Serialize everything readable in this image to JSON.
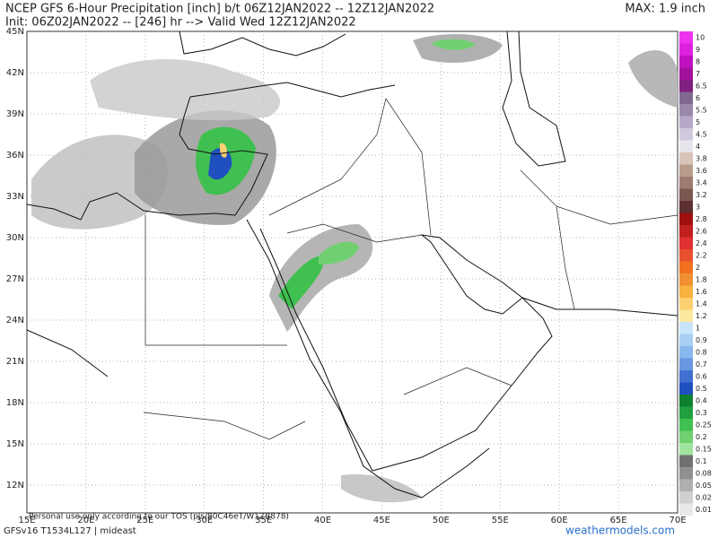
{
  "header": {
    "title": "NCEP GFS 6-Hour Precipitation [inch] b/t 06Z12JAN2022 -- 12Z12JAN2022",
    "subtitle": "Init: 06Z02JAN2022 -- [246] hr --> Valid Wed 12Z12JAN2022",
    "max": "MAX: 1.9 inch"
  },
  "map": {
    "lat_labels": [
      "45N",
      "42N",
      "39N",
      "36N",
      "33N",
      "30N",
      "27N",
      "24N",
      "21N",
      "18N",
      "15N",
      "12N"
    ],
    "lon_labels": [
      "15E",
      "20E",
      "25E",
      "30E",
      "35E",
      "40E",
      "45E",
      "50E",
      "55E",
      "60E",
      "65E",
      "70E"
    ]
  },
  "colorbar": [
    {
      "label": "10",
      "color": "#ee33ee"
    },
    {
      "label": "9",
      "color": "#dd22dd"
    },
    {
      "label": "8",
      "color": "#c010c0"
    },
    {
      "label": "7",
      "color": "#a0109a"
    },
    {
      "label": "6.5",
      "color": "#802080"
    },
    {
      "label": "6",
      "color": "#806890"
    },
    {
      "label": "5.5",
      "color": "#9a88a8"
    },
    {
      "label": "5",
      "color": "#b8a8c8"
    },
    {
      "label": "4.5",
      "color": "#d0c8dc"
    },
    {
      "label": "4",
      "color": "#e8e4ec"
    },
    {
      "label": "3.8",
      "color": "#d8c4b8"
    },
    {
      "label": "3.6",
      "color": "#b89c8c"
    },
    {
      "label": "3.4",
      "color": "#9c7c70"
    },
    {
      "label": "3.2",
      "color": "#7c5850"
    },
    {
      "label": "3",
      "color": "#5c3030"
    },
    {
      "label": "2.8",
      "color": "#a01010"
    },
    {
      "label": "2.6",
      "color": "#c02020"
    },
    {
      "label": "2.4",
      "color": "#e03030"
    },
    {
      "label": "2.2",
      "color": "#e85030"
    },
    {
      "label": "2",
      "color": "#f07020"
    },
    {
      "label": "1.8",
      "color": "#f09030"
    },
    {
      "label": "1.6",
      "color": "#f8b040"
    },
    {
      "label": "1.4",
      "color": "#fad070"
    },
    {
      "label": "1.2",
      "color": "#fce8a0"
    },
    {
      "label": "1",
      "color": "#c8e4f8"
    },
    {
      "label": "0.9",
      "color": "#a8d0f4"
    },
    {
      "label": "0.8",
      "color": "#88b8ee"
    },
    {
      "label": "0.7",
      "color": "#6898e0"
    },
    {
      "label": "0.6",
      "color": "#4070d0"
    },
    {
      "label": "0.5",
      "color": "#2050c0"
    },
    {
      "label": "0.4",
      "color": "#108030"
    },
    {
      "label": "0.3",
      "color": "#20a040"
    },
    {
      "label": "0.25",
      "color": "#40c050"
    },
    {
      "label": "0.2",
      "color": "#70d070"
    },
    {
      "label": "0.15",
      "color": "#a0e4a0"
    },
    {
      "label": "0.1",
      "color": "#707070"
    },
    {
      "label": "0.08",
      "color": "#909090"
    },
    {
      "label": "0.05",
      "color": "#b0b0b0"
    },
    {
      "label": "0.02",
      "color": "#d0d0d0"
    },
    {
      "label": "0.01",
      "color": "#e8e8e8"
    }
  ],
  "footer": {
    "disclaimer": "Personal use only according to our TOS (pls/80C46eT/W1ZB878)",
    "model": "GFSv16 T1534L127 | mideast",
    "site": "weathermodels.com"
  }
}
